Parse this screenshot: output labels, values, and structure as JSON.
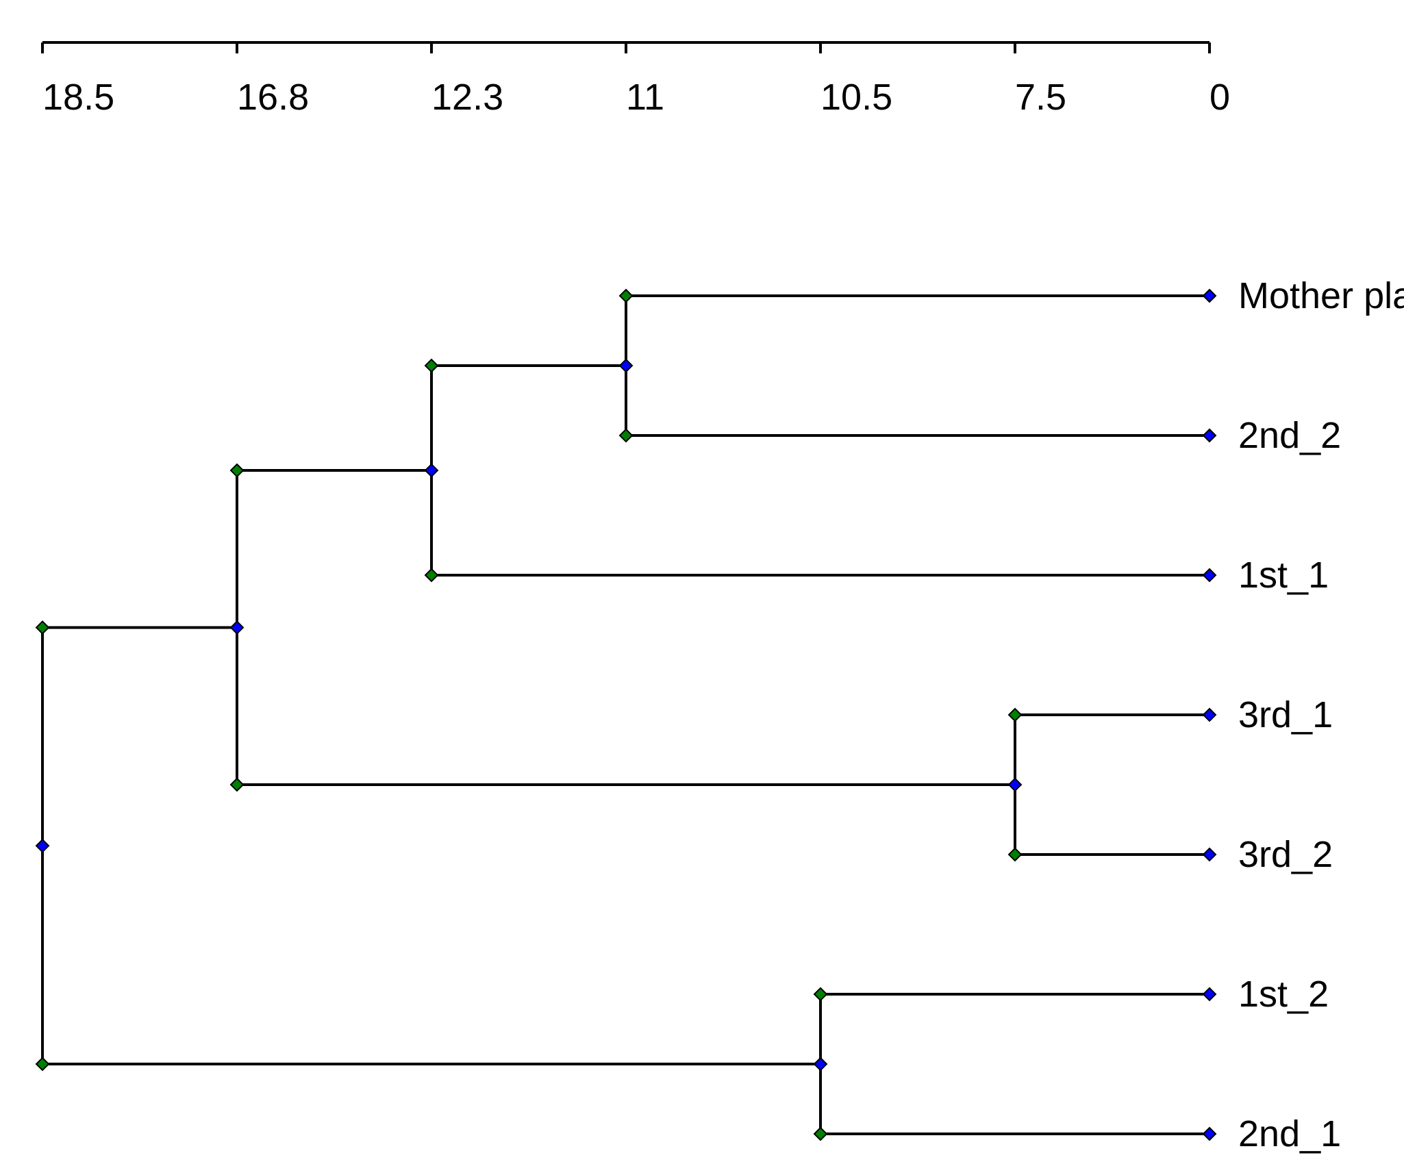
{
  "axis": {
    "ticks": [
      "18.5",
      "16.8",
      "12.3",
      "11",
      "10.5",
      "7.5",
      "0"
    ]
  },
  "leaves": [
    "Mother plant",
    "2nd_2",
    "1st_1",
    "3rd_1",
    "3rd_2",
    "1st_2",
    "2nd_1"
  ],
  "tree": {
    "label": "root",
    "height": 18.5,
    "children": [
      {
        "label": "c1",
        "height": 16.8,
        "children": [
          {
            "label": "c2",
            "height": 12.3,
            "children": [
              {
                "label": "c3",
                "height": 11,
                "children": [
                  {
                    "leaf": "Mother plant"
                  },
                  {
                    "leaf": "2nd_2"
                  }
                ]
              },
              {
                "leaf": "1st_1"
              }
            ]
          },
          {
            "label": "c4",
            "height": 7.5,
            "children": [
              {
                "leaf": "3rd_1"
              },
              {
                "leaf": "3rd_2"
              }
            ]
          }
        ]
      },
      {
        "label": "c5",
        "height": 10.5,
        "children": [
          {
            "leaf": "1st_2"
          },
          {
            "leaf": "2nd_1"
          }
        ]
      }
    ]
  },
  "colors": {
    "line": "#000000",
    "node_marker": "#0000ff",
    "child_marker": "#008000",
    "leaf_marker": "#0000ff"
  }
}
